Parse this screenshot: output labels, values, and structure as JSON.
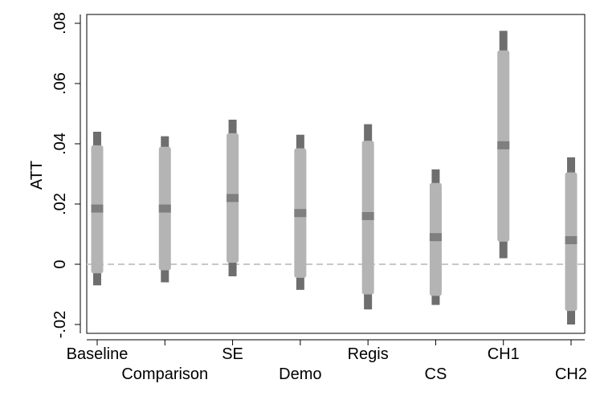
{
  "chart_data": {
    "type": "range",
    "ylabel": "ATT",
    "ylim": [
      -0.022,
      0.085
    ],
    "y_ticks": [
      {
        "value": -0.02,
        "label": "-.02"
      },
      {
        "value": 0,
        "label": "0"
      },
      {
        "value": 0.02,
        "label": ".02"
      },
      {
        "value": 0.04,
        "label": ".04"
      },
      {
        "value": 0.06,
        "label": ".06"
      },
      {
        "value": 0.08,
        "label": ".08"
      }
    ],
    "reference_line": 0,
    "categories": [
      "Baseline",
      "Comparison",
      "SE",
      "Demo",
      "Regis",
      "CS",
      "CH1",
      "CH2"
    ],
    "series": [
      {
        "category": "Baseline",
        "estimate": 0.0185,
        "inner": [
          -0.003,
          0.0395
        ],
        "outer": [
          -0.007,
          0.044
        ]
      },
      {
        "category": "Comparison",
        "estimate": 0.0185,
        "inner": [
          -0.002,
          0.039
        ],
        "outer": [
          -0.006,
          0.0425
        ]
      },
      {
        "category": "SE",
        "estimate": 0.022,
        "inner": [
          0.0005,
          0.0435
        ],
        "outer": [
          -0.004,
          0.048
        ]
      },
      {
        "category": "Demo",
        "estimate": 0.017,
        "inner": [
          -0.0045,
          0.0385
        ],
        "outer": [
          -0.0085,
          0.043
        ]
      },
      {
        "category": "Regis",
        "estimate": 0.016,
        "inner": [
          -0.01,
          0.041
        ],
        "outer": [
          -0.015,
          0.0465
        ]
      },
      {
        "category": "CS",
        "estimate": 0.009,
        "inner": [
          -0.0105,
          0.027
        ],
        "outer": [
          -0.0135,
          0.0315
        ]
      },
      {
        "category": "CH1",
        "estimate": 0.0395,
        "inner": [
          0.0075,
          0.071
        ],
        "outer": [
          0.002,
          0.0775
        ]
      },
      {
        "category": "CH2",
        "estimate": 0.008,
        "inner": [
          -0.0155,
          0.0305
        ],
        "outer": [
          -0.02,
          0.0355
        ]
      }
    ],
    "colors": {
      "outer": "#6e6e6e",
      "inner": "#b4b4b4",
      "estimate": "#7f7f7f",
      "reference_line": "#c8c8c8"
    },
    "grid": false,
    "legend": "none"
  }
}
